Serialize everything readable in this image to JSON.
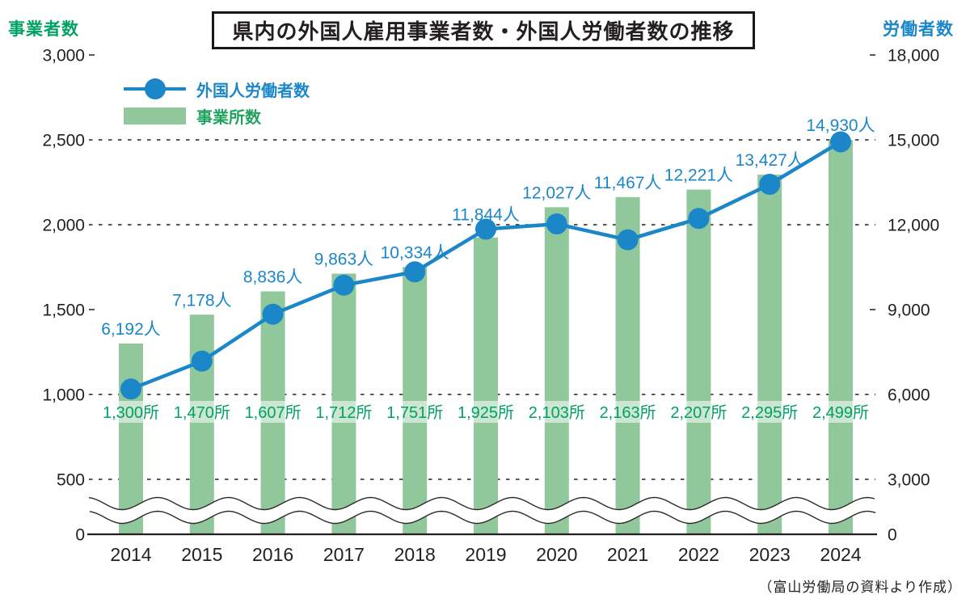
{
  "page": {
    "background": "#ffffff"
  },
  "chart": {
    "title": "県内の外国人雇用事業者数・外国人労働者数の推移",
    "left_axis_title": "事業者数",
    "right_axis_title": "労働者数",
    "source_note": "（富山労働局の資料より作成）",
    "legend": [
      {
        "label": "外国人労働者数",
        "swatch": "line-with-dot",
        "color": "#1b87c9"
      },
      {
        "label": "事業所数",
        "swatch": "bar",
        "color": "#90c79b"
      }
    ]
  },
  "colors": {
    "line_blue": "#1b87c9",
    "bar_green": "#90c79b",
    "green_text": "#00a263",
    "ink_black": "#231f20",
    "label_band": "rgba(255,255,255,0.55)",
    "wave_stroke": "#2e2a2b"
  },
  "chart_data": {
    "type": "combo",
    "title": "県内の外国人雇用事業者数・外国人労働者数の推移",
    "categories": [
      "2014",
      "2015",
      "2016",
      "2017",
      "2018",
      "2019",
      "2020",
      "2021",
      "2022",
      "2023",
      "2024"
    ],
    "series": [
      {
        "name": "外国人労働者数",
        "type": "line",
        "axis": "right",
        "unit": "人",
        "values": [
          6192,
          7178,
          8836,
          9863,
          10334,
          11844,
          12027,
          11467,
          12221,
          13427,
          14930
        ],
        "labels": [
          "6,192人",
          "7,178人",
          "8,836人",
          "9,863人",
          "10,334人",
          "11,844人",
          "12,027人",
          "11,467人",
          "12,221人",
          "13,427人",
          "14,930人"
        ]
      },
      {
        "name": "事業所数",
        "type": "bar",
        "axis": "left",
        "unit": "所",
        "values": [
          1300,
          1470,
          1607,
          1712,
          1751,
          1925,
          2103,
          2163,
          2207,
          2295,
          2499
        ],
        "labels": [
          "1,300所",
          "1,470所",
          "1,607所",
          "1,712所",
          "1,751所",
          "1,925所",
          "2,103所",
          "2,163所",
          "2,207所",
          "2,295所",
          "2,499所"
        ]
      }
    ],
    "left_axis": {
      "title": "事業者数",
      "range": [
        0,
        3000
      ],
      "tick_values": [
        3000,
        2500,
        2000,
        1500,
        1000,
        500,
        0
      ],
      "tick_labels": [
        "3,000",
        "2,500",
        "2,000",
        "1,500",
        "1,000",
        "500",
        "0"
      ]
    },
    "right_axis": {
      "title": "労働者数",
      "range": [
        0,
        18000
      ],
      "tick_values": [
        18000,
        15000,
        12000,
        9000,
        6000,
        3000,
        0
      ],
      "tick_labels": [
        "18,000",
        "15,000",
        "12,000",
        "9,000",
        "6,000",
        "3,000",
        "0"
      ]
    },
    "gridlines": {
      "style": "dashed",
      "full_line_left_values": [
        2500,
        2000,
        1000,
        500
      ],
      "tick_only_left_values": [
        3000,
        1500
      ]
    },
    "axis_break": {
      "present": true,
      "style": "double-wavy-line",
      "location": "between 0 and 500 (left axis)"
    },
    "legend_position": "top-left",
    "source": "（富山労働局の資料より作成）"
  }
}
